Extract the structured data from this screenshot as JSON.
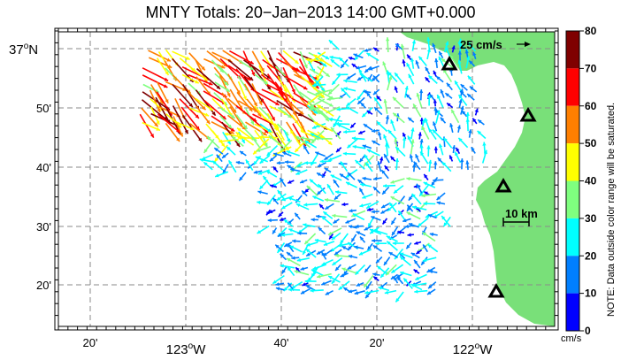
{
  "title": "MNTY Totals: 20−Jan−2013 14:00 GMT+0.000",
  "x_ticks_minor": [
    "20'",
    "40'",
    "20'"
  ],
  "x_ticks_major": [
    {
      "deg": "123",
      "hem": "W"
    },
    {
      "deg": "122",
      "hem": "W"
    }
  ],
  "y_ticks": [
    "50'",
    "40'",
    "30'",
    "20'"
  ],
  "y_major": {
    "deg": "37",
    "hem": "N"
  },
  "deg_symbol": "o",
  "scale_vector_label": "25 cm/s",
  "scale_bar_label": "10 km",
  "colorbar": {
    "ticks": [
      "80",
      "70",
      "60",
      "50",
      "40",
      "30",
      "20",
      "10",
      "0"
    ],
    "unit": "cm/s",
    "note": "NOTE: Data outside color range will be saturated.",
    "bands": [
      {
        "from": 70,
        "to": 80,
        "color": "#7f0000"
      },
      {
        "from": 60,
        "to": 70,
        "color": "#ff0000"
      },
      {
        "from": 50,
        "to": 60,
        "color": "#ff7f00"
      },
      {
        "from": 40,
        "to": 50,
        "color": "#ffff00"
      },
      {
        "from": 30,
        "to": 40,
        "color": "#7fff7f"
      },
      {
        "from": 20,
        "to": 30,
        "color": "#00ffff"
      },
      {
        "from": 10,
        "to": 20,
        "color": "#007fff"
      },
      {
        "from": 0,
        "to": 10,
        "color": "#0000ff"
      }
    ]
  },
  "colors": {
    "land": "#79e079",
    "water": "#ffffff",
    "grid": "#8a8a8a"
  },
  "stations": [
    {
      "icon": "triangle-icon"
    },
    {
      "icon": "triangle-icon"
    },
    {
      "icon": "triangle-icon"
    },
    {
      "icon": "triangle-icon"
    }
  ]
}
